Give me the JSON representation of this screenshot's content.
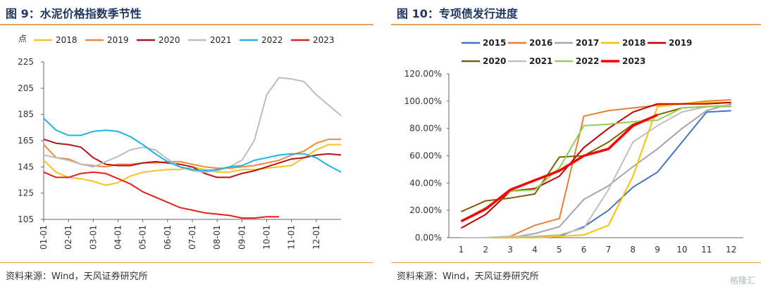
{
  "left": {
    "title": "图 9：水泥价格指数季节性",
    "source": "资料来源：Wind，天风证券研究所"
  },
  "right": {
    "title": "图 10：专项债发行进度",
    "source": "资料来源：Wind，天风证券研究所"
  },
  "watermark": "格隆汇",
  "chart_data": [
    {
      "type": "line",
      "title": "水泥价格指数季节性",
      "ylabel": "点",
      "ylim": [
        105,
        225
      ],
      "yticks": [
        105,
        125,
        145,
        165,
        185,
        205,
        225
      ],
      "x_ticks": [
        "01-01",
        "02-01",
        "03-01",
        "04-01",
        "05-01",
        "06-01",
        "07-01",
        "08-01",
        "09-01",
        "10-01",
        "11-01",
        "12-01"
      ],
      "x": [
        0,
        0.5,
        1,
        1.5,
        2,
        2.5,
        3,
        3.5,
        4,
        4.5,
        5,
        5.5,
        6,
        6.5,
        7,
        7.5,
        8,
        8.5,
        9,
        9.5,
        10,
        10.5,
        11,
        11.5,
        12
      ],
      "legend_position": "top",
      "series": [
        {
          "name": "2018",
          "color": "#f6c324",
          "values": [
            150,
            141,
            137,
            136,
            134,
            131,
            133,
            138,
            141,
            142,
            143,
            143,
            145,
            143,
            141,
            141,
            143,
            143,
            144,
            145,
            146,
            152,
            158,
            162,
            162
          ]
        },
        {
          "name": "2019",
          "color": "#f08a35",
          "values": [
            162,
            152,
            151,
            147,
            146,
            145,
            147,
            147,
            148,
            148,
            149,
            149,
            147,
            145,
            144,
            144,
            145,
            146,
            148,
            150,
            154,
            157,
            163,
            166,
            166
          ]
        },
        {
          "name": "2020",
          "color": "#b5121b",
          "values": [
            166,
            163,
            162,
            160,
            152,
            147,
            146,
            146,
            148,
            149,
            148,
            147,
            145,
            140,
            137,
            137,
            140,
            142,
            145,
            148,
            151,
            152,
            154,
            155,
            154
          ]
        },
        {
          "name": "2021",
          "color": "#bdbdbd",
          "values": [
            154,
            152,
            150,
            147,
            145,
            149,
            153,
            158,
            160,
            158,
            151,
            145,
            142,
            141,
            142,
            145,
            150,
            165,
            200,
            213,
            212,
            210,
            200,
            192,
            184
          ]
        },
        {
          "name": "2022",
          "color": "#1db3e6",
          "values": [
            182,
            173,
            169,
            169,
            172,
            173,
            172,
            168,
            162,
            155,
            149,
            145,
            143,
            142,
            143,
            145,
            146,
            150,
            152,
            154,
            155,
            155,
            152,
            146,
            141
          ]
        },
        {
          "name": "2023",
          "color": "#e3201b",
          "values": [
            141,
            137,
            137,
            140,
            141,
            140,
            136,
            132,
            126,
            122,
            118,
            114,
            112,
            110,
            109,
            108,
            106,
            106,
            107,
            107,
            null,
            null,
            null,
            null,
            null
          ]
        }
      ]
    },
    {
      "type": "line",
      "title": "专项债发行进度",
      "ylim": [
        0,
        120
      ],
      "yticks": [
        "0.00%",
        "20.00%",
        "40.00%",
        "60.00%",
        "80.00%",
        "100.00%",
        "120.00%"
      ],
      "x": [
        1,
        2,
        3,
        4,
        5,
        6,
        7,
        8,
        9,
        10,
        11,
        12
      ],
      "legend_position": "top",
      "series": [
        {
          "name": "2015",
          "color": "#4472c4",
          "values": [
            0,
            0,
            0,
            0.5,
            1,
            8,
            20,
            37,
            48,
            70,
            92,
            93
          ]
        },
        {
          "name": "2016",
          "color": "#ed7d31",
          "values": [
            0,
            0,
            1,
            9,
            14,
            89,
            93,
            95,
            97,
            98,
            100,
            101
          ]
        },
        {
          "name": "2017",
          "color": "#a5a5a5",
          "values": [
            0,
            0,
            0,
            3,
            8,
            28,
            38,
            52,
            65,
            80,
            93,
            98
          ]
        },
        {
          "name": "2018",
          "color": "#ffc000",
          "values": [
            0,
            0,
            0,
            0,
            1,
            2,
            9,
            45,
            96,
            98,
            99,
            99
          ]
        },
        {
          "name": "2019",
          "color": "#c00000",
          "values": [
            7,
            17,
            34,
            36,
            45,
            66,
            80,
            92,
            98,
            98,
            98,
            99
          ]
        },
        {
          "name": "2020",
          "color": "#7f6000",
          "values": [
            19,
            27,
            29,
            32,
            59,
            60,
            70,
            83,
            90,
            95,
            96,
            97
          ]
        },
        {
          "name": "2021",
          "color": "#bfbfbf",
          "values": [
            0,
            0,
            1,
            1,
            2,
            7,
            35,
            70,
            82,
            92,
            96,
            97
          ]
        },
        {
          "name": "2022",
          "color": "#92d050",
          "values": [
            12,
            22,
            34,
            35,
            51,
            82,
            83,
            85,
            86,
            95,
            96,
            96
          ]
        },
        {
          "name": "2023",
          "color": "#ff0000",
          "values": [
            12,
            21,
            35,
            42,
            49,
            60,
            65,
            82,
            90,
            null,
            null,
            null
          ]
        }
      ]
    }
  ]
}
